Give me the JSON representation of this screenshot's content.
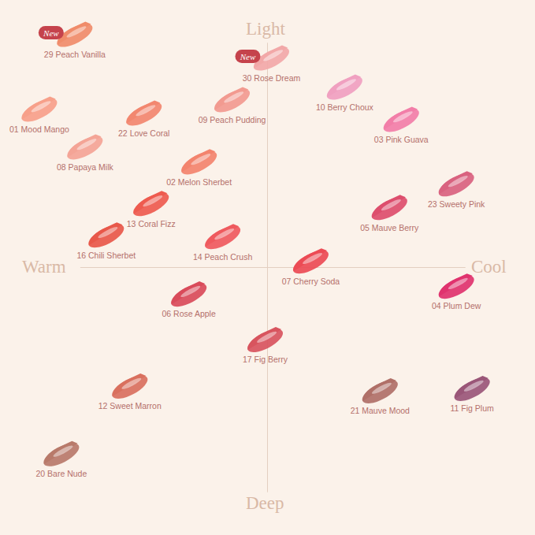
{
  "chart_data": {
    "type": "scatter",
    "x_axis_labels": [
      "Warm",
      "Cool"
    ],
    "y_axis_labels": [
      "Deep",
      "Light"
    ],
    "xlim": [
      -340,
      340
    ],
    "ylim": [
      -340,
      340
    ],
    "tick_labels": false,
    "grid": false,
    "marker": "swatch",
    "badge": "New",
    "series": [
      {
        "name": "29 Peach Vanilla",
        "x": -245,
        "y": 295,
        "color": "#f08c6a",
        "new": true
      },
      {
        "name": "30 Rose Dream",
        "x": 5,
        "y": 265,
        "color": "#f2a8a8",
        "new": true
      },
      {
        "name": "10 Berry Choux",
        "x": 98,
        "y": 228,
        "color": "#f0a0c0",
        "new": false
      },
      {
        "name": "03 Pink Guava",
        "x": 170,
        "y": 187,
        "color": "#f27ea8",
        "new": false
      },
      {
        "name": "01 Mood Mango",
        "x": -290,
        "y": 200,
        "color": "#f7a08a",
        "new": false
      },
      {
        "name": "22 Love Coral",
        "x": -157,
        "y": 195,
        "color": "#f2876f",
        "new": false
      },
      {
        "name": "09 Peach Pudding",
        "x": -45,
        "y": 212,
        "color": "#f29a90",
        "new": false
      },
      {
        "name": "08 Papaya Milk",
        "x": -232,
        "y": 152,
        "color": "#f4a496",
        "new": false
      },
      {
        "name": "02 Melon Sherbet",
        "x": -87,
        "y": 133,
        "color": "#f3846e",
        "new": false
      },
      {
        "name": "13 Coral Fizz",
        "x": -148,
        "y": 80,
        "color": "#ee5b4f",
        "new": false
      },
      {
        "name": "23 Sweety Pink",
        "x": 240,
        "y": 105,
        "color": "#d9627f",
        "new": false
      },
      {
        "name": "05 Mauve Berry",
        "x": 155,
        "y": 75,
        "color": "#dd4e6d",
        "new": false
      },
      {
        "name": "16 Chili Sherbet",
        "x": -205,
        "y": 40,
        "color": "#e8584a",
        "new": false
      },
      {
        "name": "14 Peach Crush",
        "x": -57,
        "y": 38,
        "color": "#ef5a5e",
        "new": false
      },
      {
        "name": "07 Cherry Soda",
        "x": 55,
        "y": 7,
        "color": "#ec4b55",
        "new": false
      },
      {
        "name": "04 Plum Dew",
        "x": 240,
        "y": -25,
        "color": "#e0336e",
        "new": false
      },
      {
        "name": "06 Rose Apple",
        "x": -100,
        "y": -35,
        "color": "#d94b5a",
        "new": false
      },
      {
        "name": "17 Fig Berry",
        "x": -3,
        "y": -93,
        "color": "#d8545e",
        "new": false
      },
      {
        "name": "12 Sweet Marron",
        "x": -175,
        "y": -152,
        "color": "#d9705e",
        "new": false
      },
      {
        "name": "21 Mauve Mood",
        "x": 143,
        "y": -158,
        "color": "#b07068",
        "new": false
      },
      {
        "name": "11 Fig Plum",
        "x": 260,
        "y": -155,
        "color": "#9a5678",
        "new": false
      },
      {
        "name": "20 Bare Nude",
        "x": -262,
        "y": -238,
        "color": "#b87a6a",
        "new": false
      }
    ]
  }
}
